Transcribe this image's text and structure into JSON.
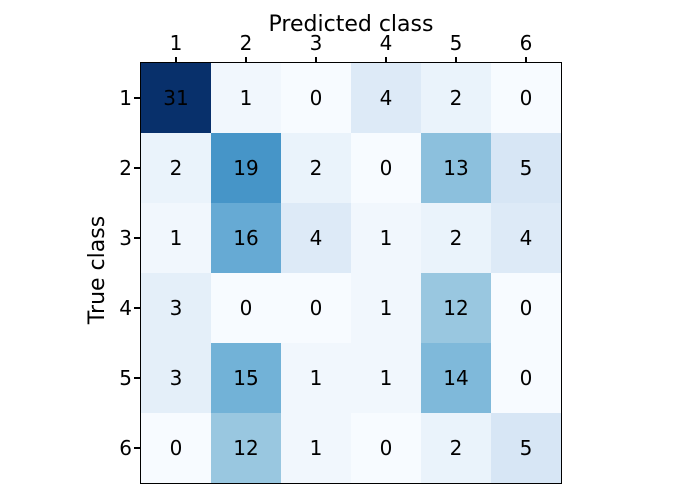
{
  "chart_data": {
    "type": "heatmap",
    "xlabel": "Predicted class",
    "ylabel": "True class",
    "x_tick_labels": [
      "1",
      "2",
      "3",
      "4",
      "5",
      "6"
    ],
    "y_tick_labels": [
      "1",
      "2",
      "3",
      "4",
      "5",
      "6"
    ],
    "matrix": [
      [
        31,
        1,
        0,
        4,
        2,
        0
      ],
      [
        2,
        19,
        2,
        0,
        13,
        5
      ],
      [
        1,
        16,
        4,
        1,
        2,
        4
      ],
      [
        3,
        0,
        0,
        1,
        12,
        0
      ],
      [
        3,
        15,
        1,
        1,
        14,
        0
      ],
      [
        0,
        12,
        1,
        0,
        2,
        5
      ]
    ],
    "vmin": 0,
    "vmax": 31,
    "colormap_name": "Blues",
    "colormap_stops": [
      "#f7fbff",
      "#deebf7",
      "#c6dbef",
      "#9ecae1",
      "#6baed6",
      "#4292c6",
      "#2171b5",
      "#08519c",
      "#08306b"
    ],
    "annotation_color": "#000000",
    "axes_edge_color": "#000000",
    "background_color": "#ffffff",
    "grid": "off",
    "legend": "off",
    "colorbar": "off"
  }
}
